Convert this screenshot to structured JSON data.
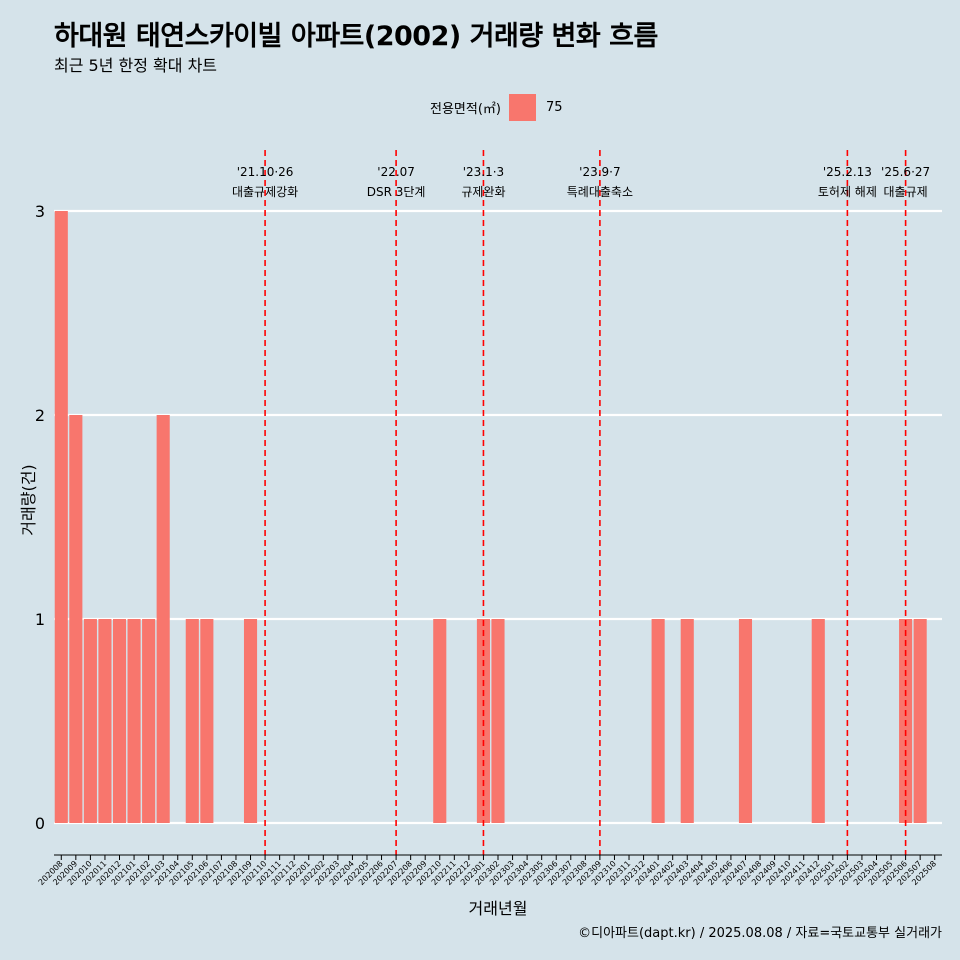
{
  "title": "하대원 태연스카이빌 아파트(2002) 거래량 변화 흐름",
  "subtitle": "최근 5년 한정 확대 차트",
  "legend": {
    "title": "전용면적(㎡)",
    "label": "75",
    "color": "#f8766d"
  },
  "caption": "©디아파트(dapt.kr) / 2025.08.08 / 자료=국토교통부 실거래가",
  "chart_data": {
    "type": "bar",
    "xlabel": "거래년월",
    "ylabel": "거래량(건)",
    "ylim": [
      0,
      3
    ],
    "y_ticks": [
      "0",
      "1",
      "2",
      "3"
    ],
    "grid": true,
    "legend_position": "top",
    "bar_color": "#f8766d",
    "categories": [
      "202008",
      "202009",
      "202010",
      "202011",
      "202012",
      "202101",
      "202102",
      "202103",
      "202104",
      "202105",
      "202106",
      "202107",
      "202108",
      "202109",
      "202110",
      "202111",
      "202112",
      "202201",
      "202202",
      "202203",
      "202204",
      "202205",
      "202206",
      "202207",
      "202208",
      "202209",
      "202210",
      "202211",
      "202212",
      "202301",
      "202302",
      "202303",
      "202304",
      "202305",
      "202306",
      "202307",
      "202308",
      "202309",
      "202310",
      "202311",
      "202312",
      "202401",
      "202402",
      "202403",
      "202404",
      "202405",
      "202406",
      "202407",
      "202408",
      "202409",
      "202410",
      "202411",
      "202412",
      "202501",
      "202502",
      "202503",
      "202504",
      "202505",
      "202506",
      "202507",
      "202508"
    ],
    "series": [
      {
        "values": [
          3,
          2,
          1,
          1,
          1,
          1,
          1,
          2,
          0,
          1,
          1,
          0,
          0,
          1,
          0,
          0,
          0,
          0,
          0,
          0,
          0,
          0,
          0,
          0,
          0,
          0,
          1,
          0,
          0,
          1,
          1,
          0,
          0,
          0,
          0,
          0,
          0,
          0,
          0,
          0,
          0,
          1,
          0,
          1,
          0,
          0,
          0,
          1,
          0,
          0,
          0,
          0,
          1,
          0,
          0,
          0,
          0,
          0,
          1,
          1,
          0
        ]
      }
    ],
    "events": [
      {
        "date": "'21.10·26",
        "label": "대출규제강화",
        "category": "202110"
      },
      {
        "date": "'22.07",
        "label": "DSR 3단계",
        "category": "202207"
      },
      {
        "date": "'23.1·3",
        "label": "규제완화",
        "category": "202301"
      },
      {
        "date": "'23.9·7",
        "label": "특례대출축소",
        "category": "202309"
      },
      {
        "date": "'25.2.13",
        "label": "토허제 해제",
        "category": "202502"
      },
      {
        "date": "'25.6·27",
        "label": "대출규제",
        "category": "202506"
      }
    ]
  }
}
